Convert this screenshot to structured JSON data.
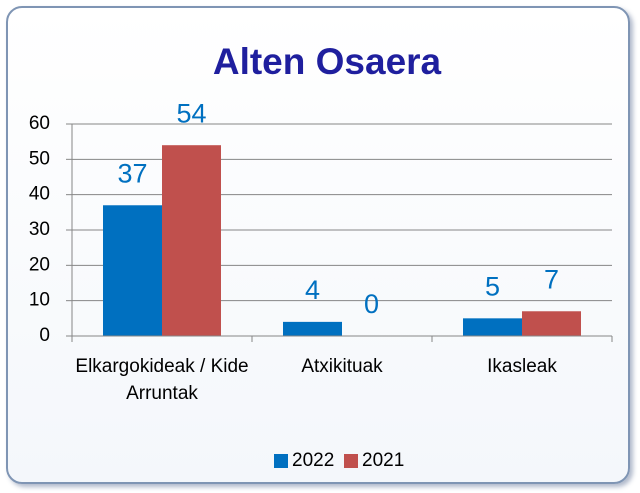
{
  "chart_data": {
    "type": "bar",
    "title": "Alten Osaera",
    "categories": [
      "Elkargokideak / Kide Arruntak",
      "Atxikituak",
      "Ikasleak"
    ],
    "series": [
      {
        "name": "2022",
        "color": "#0070c0",
        "values": [
          37,
          4,
          5
        ]
      },
      {
        "name": "2021",
        "color": "#c0504d",
        "values": [
          54,
          0,
          7
        ]
      }
    ],
    "ylim": [
      0,
      60
    ],
    "yticks": [
      0,
      10,
      20,
      30,
      40,
      50,
      60
    ],
    "grid": true,
    "legend": "bottom"
  }
}
